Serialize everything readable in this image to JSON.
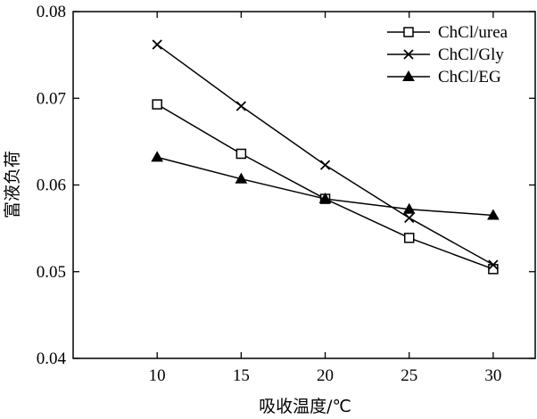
{
  "chart_data": {
    "type": "line",
    "title": "",
    "xlabel": "吸收温度/℃",
    "ylabel": "富液负荷",
    "x": [
      10,
      15,
      20,
      25,
      30
    ],
    "xlim": [
      5,
      32.5
    ],
    "ylim": [
      0.04,
      0.08
    ],
    "xticks": [
      10,
      15,
      20,
      25,
      30
    ],
    "yticks": [
      0.04,
      0.05,
      0.06,
      0.07,
      0.08
    ],
    "ytick_labels": [
      "0.04",
      "0.05",
      "0.06",
      "0.07",
      "0.08"
    ],
    "grid": false,
    "legend_position": "top-right",
    "series": [
      {
        "name": "ChCl/urea",
        "marker": "open-square",
        "values": [
          0.0693,
          0.0636,
          0.0584,
          0.0539,
          0.0503
        ]
      },
      {
        "name": "ChCl/Gly",
        "marker": "x",
        "values": [
          0.0762,
          0.0691,
          0.0623,
          0.0562,
          0.0508
        ]
      },
      {
        "name": "ChCl/EG",
        "marker": "filled-triangle",
        "values": [
          0.0632,
          0.0607,
          0.0584,
          0.0572,
          0.0565
        ]
      }
    ]
  }
}
